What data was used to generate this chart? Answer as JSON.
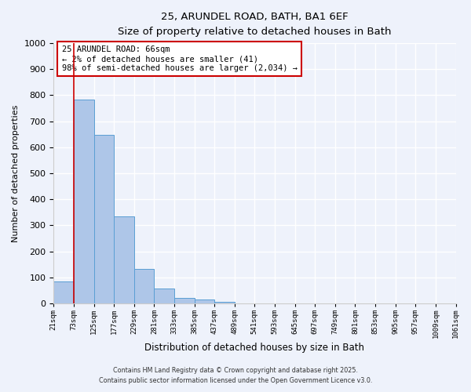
{
  "title": "25, ARUNDEL ROAD, BATH, BA1 6EF",
  "subtitle": "Size of property relative to detached houses in Bath",
  "xlabel": "Distribution of detached houses by size in Bath",
  "ylabel": "Number of detached properties",
  "bin_labels": [
    "21sqm",
    "73sqm",
    "125sqm",
    "177sqm",
    "229sqm",
    "281sqm",
    "333sqm",
    "385sqm",
    "437sqm",
    "489sqm",
    "541sqm",
    "593sqm",
    "645sqm",
    "697sqm",
    "749sqm",
    "801sqm",
    "853sqm",
    "905sqm",
    "957sqm",
    "1009sqm",
    "1061sqm"
  ],
  "bar_values": [
    83,
    783,
    648,
    335,
    133,
    58,
    22,
    15,
    5,
    0,
    0,
    0,
    0,
    0,
    0,
    0,
    0,
    0,
    0,
    0
  ],
  "bar_color": "#aec6e8",
  "bar_edge_color": "#5a9fd4",
  "property_line_x": 1,
  "property_line_label": "25 ARUNDEL ROAD: 66sqm",
  "annotation_line1": "← 2% of detached houses are smaller (41)",
  "annotation_line2": "98% of semi-detached houses are larger (2,034) →",
  "annotation_box_color": "#ffffff",
  "annotation_box_edge": "#cc0000",
  "vline_color": "#cc0000",
  "ylim": [
    0,
    1000
  ],
  "yticks": [
    0,
    100,
    200,
    300,
    400,
    500,
    600,
    700,
    800,
    900,
    1000
  ],
  "bg_color": "#eef2fb",
  "footer1": "Contains HM Land Registry data © Crown copyright and database right 2025.",
  "footer2": "Contains public sector information licensed under the Open Government Licence v3.0."
}
